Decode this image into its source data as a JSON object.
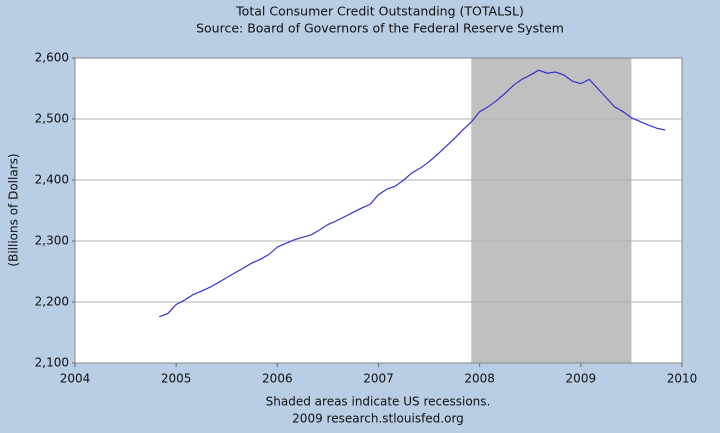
{
  "chart_data": {
    "type": "line",
    "title": "Total Consumer Credit Outstanding (TOTALSL)",
    "subtitle": "Source: Board of Governors of the Federal Reserve System",
    "ylabel": "(Billions of Dollars)",
    "footnotes": [
      "Shaded areas indicate US recessions.",
      "2009 research.stlouisfed.org"
    ],
    "xlim": [
      2004,
      2010
    ],
    "xticks": [
      2004,
      2005,
      2006,
      2007,
      2008,
      2009,
      2010
    ],
    "ylim": [
      2100,
      2600
    ],
    "yticks": [
      {
        "value": 2100,
        "label": "2,100"
      },
      {
        "value": 2200,
        "label": "2,200"
      },
      {
        "value": 2300,
        "label": "2,300"
      },
      {
        "value": 2400,
        "label": "2,400"
      },
      {
        "value": 2500,
        "label": "2,500"
      },
      {
        "value": 2600,
        "label": "2,600"
      }
    ],
    "grid": true,
    "recessions": [
      {
        "start": 2007.917,
        "end": 2009.5,
        "color": "#c0c0c0"
      }
    ],
    "x": [
      2004.833,
      2004.917,
      2005.0,
      2005.083,
      2005.167,
      2005.25,
      2005.333,
      2005.417,
      2005.5,
      2005.583,
      2005.667,
      2005.75,
      2005.833,
      2005.917,
      2006.0,
      2006.083,
      2006.167,
      2006.25,
      2006.333,
      2006.417,
      2006.5,
      2006.583,
      2006.667,
      2006.75,
      2006.833,
      2006.917,
      2007.0,
      2007.083,
      2007.167,
      2007.25,
      2007.333,
      2007.417,
      2007.5,
      2007.583,
      2007.667,
      2007.75,
      2007.833,
      2007.917,
      2008.0,
      2008.083,
      2008.167,
      2008.25,
      2008.333,
      2008.417,
      2008.5,
      2008.583,
      2008.667,
      2008.75,
      2008.833,
      2008.917,
      2009.0,
      2009.083,
      2009.167,
      2009.25,
      2009.333,
      2009.417,
      2009.5,
      2009.583,
      2009.667,
      2009.75,
      2009.833
    ],
    "series": [
      {
        "name": "TOTALSL",
        "color": "#3333cc",
        "values": [
          2176,
          2181,
          2196,
          2203,
          2212,
          2218,
          2224,
          2232,
          2240,
          2248,
          2256,
          2264,
          2270,
          2278,
          2290,
          2296,
          2302,
          2306,
          2310,
          2318,
          2327,
          2333,
          2340,
          2347,
          2354,
          2360,
          2376,
          2385,
          2390,
          2400,
          2412,
          2420,
          2430,
          2442,
          2455,
          2468,
          2482,
          2495,
          2512,
          2520,
          2530,
          2542,
          2555,
          2565,
          2572,
          2580,
          2575,
          2577,
          2572,
          2562,
          2558,
          2565,
          2550,
          2535,
          2520,
          2512,
          2502,
          2496,
          2490,
          2485,
          2482
        ]
      }
    ]
  }
}
